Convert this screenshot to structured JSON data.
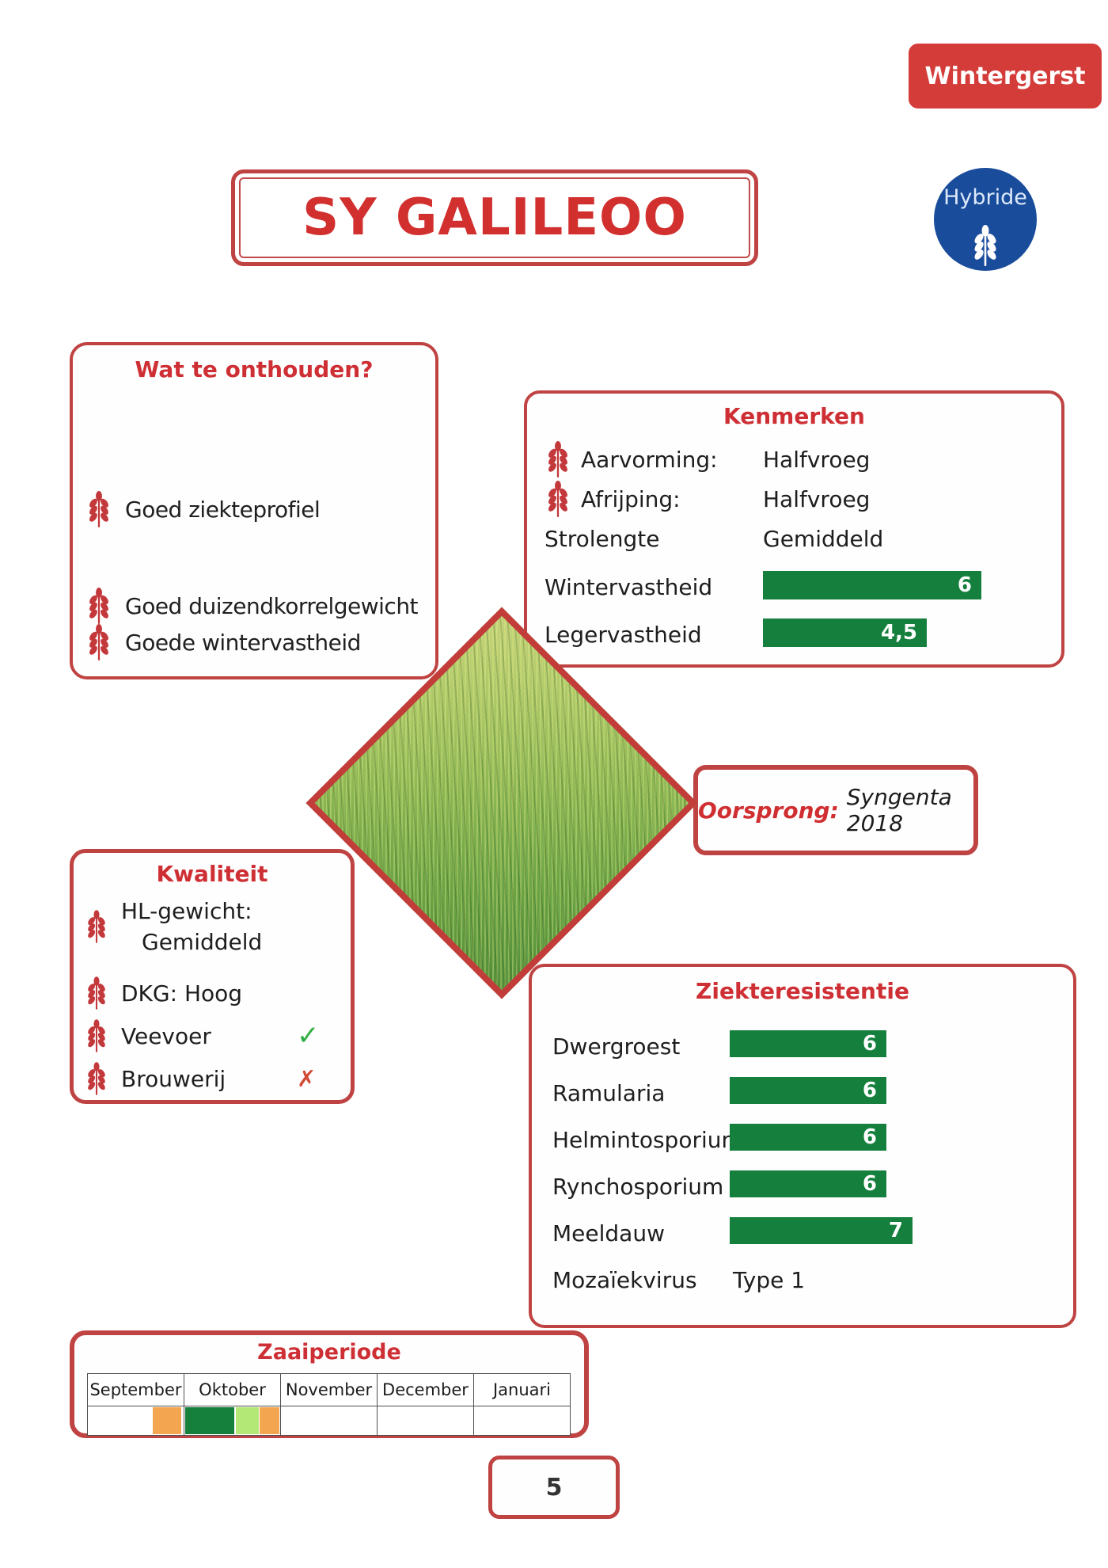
{
  "badge": {
    "label": "Wintergerst"
  },
  "title": "SY GALILEOO",
  "hybride": {
    "label": "Hybride"
  },
  "wat_te_onthouden": {
    "title": "Wat te onthouden?",
    "items": [
      "Goed ziekteprofiel",
      "Goed duizendkorrelgewicht",
      "Goede wintervastheid"
    ]
  },
  "kenmerken": {
    "title": "Kenmerken",
    "traits": [
      {
        "label": "Aarvorming:",
        "value": "Halfvroeg",
        "icon": true
      },
      {
        "label": "Afrijping:",
        "value": "Halfvroeg",
        "icon": true
      },
      {
        "label": "Strolengte",
        "value": "Gemiddeld",
        "icon": false
      }
    ],
    "bars": [
      {
        "label": "Wintervastheid",
        "value": "6",
        "num": 6
      },
      {
        "label": "Legervastheid",
        "value": "4,5",
        "num": 4.5
      }
    ]
  },
  "oorsprong": {
    "label": "Oorsprong:",
    "value": "Syngenta 2018"
  },
  "kwaliteit": {
    "title": "Kwaliteit",
    "items": [
      {
        "label": "HL-gewicht:",
        "value2": "Gemiddeld"
      },
      {
        "label": "DKG: Hoog"
      },
      {
        "label": "Veevoer",
        "mark": "check"
      },
      {
        "label": "Brouwerij",
        "mark": "cross"
      }
    ]
  },
  "ziekteresistentie": {
    "title": "Ziekteresistentie",
    "bars": [
      {
        "label": "Dwergroest",
        "value": "6",
        "num": 6
      },
      {
        "label": "Ramularia",
        "value": "6",
        "num": 6
      },
      {
        "label": "Helmintosporium",
        "value": "6",
        "num": 6
      },
      {
        "label": "Rynchosporium",
        "value": "6",
        "num": 6
      },
      {
        "label": "Meeldauw",
        "value": "7",
        "num": 7
      }
    ],
    "extra": {
      "label": "Mozaïekvirus",
      "value": "Type 1"
    }
  },
  "zaaiperiode": {
    "title": "Zaaiperiode",
    "months": [
      "September",
      "Oktober",
      "November",
      "December",
      "Januari"
    ],
    "segments": [
      {
        "color": "orange",
        "left_pct": 13.5,
        "width_pct": 5.8
      },
      {
        "color": "dark_green",
        "left_pct": 20.2,
        "width_pct": 10.2
      },
      {
        "color": "light_green",
        "left_pct": 30.6,
        "width_pct": 4.8
      },
      {
        "color": "orange",
        "left_pct": 35.5,
        "width_pct": 4.2
      }
    ]
  },
  "page_number": "5",
  "marks": {
    "check": "✓",
    "cross": "✗"
  },
  "colors": {
    "red_border": "#bf4342",
    "red_heading": "#ce2f34",
    "red_badge": "#d43c3a",
    "wheat_red": "#c3383b",
    "bar_green": "#15803e",
    "hybride_blue": "#1a4c9c",
    "orange": "#f3a64f",
    "dark_green": "#14803c",
    "light_green": "#b4e876",
    "check_green": "#2fae44",
    "cross_red": "#d14a36"
  },
  "chart_data": [
    {
      "type": "bar",
      "title": "Kenmerken",
      "categories": [
        "Wintervastheid",
        "Legervastheid"
      ],
      "values": [
        6,
        4.5
      ],
      "xlim": [
        0,
        9
      ],
      "orientation": "horizontal"
    },
    {
      "type": "bar",
      "title": "Ziekteresistentie",
      "categories": [
        "Dwergroest",
        "Ramularia",
        "Helmintosporium",
        "Rynchosporium",
        "Meeldauw"
      ],
      "values": [
        6,
        6,
        6,
        6,
        7
      ],
      "xlim": [
        0,
        9
      ],
      "orientation": "horizontal"
    }
  ]
}
